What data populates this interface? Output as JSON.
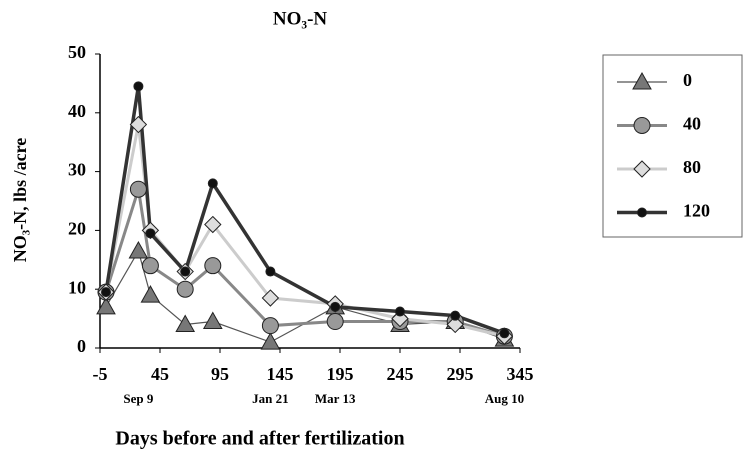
{
  "chart_data": {
    "type": "line",
    "title": "NO₃-N",
    "ylabel": "NO₃-N,  lbs /acre",
    "xlabel": "Days before and after fertilization",
    "x": [
      0,
      27,
      37,
      66,
      89,
      137,
      191,
      245,
      291,
      332
    ],
    "series": [
      {
        "name": "0",
        "color": "#555555",
        "marker_color": "#777777",
        "marker": "triangle",
        "values": [
          7,
          16.5,
          9,
          4,
          4.5,
          1,
          7,
          4,
          4.5,
          1.5
        ]
      },
      {
        "name": "40",
        "color": "#888888",
        "marker_color": "#999999",
        "marker": "circle",
        "values": [
          9.5,
          27,
          14,
          10,
          14,
          3.8,
          4.5,
          4.5,
          4.5,
          2
        ]
      },
      {
        "name": "80",
        "color": "#cccccc",
        "marker_color": "#dddddd",
        "marker": "diamond",
        "values": [
          9.5,
          38,
          20,
          13,
          21,
          8.5,
          7.5,
          5,
          4,
          2
        ]
      },
      {
        "name": "120",
        "color": "#333333",
        "marker_color": "#111111",
        "marker": "dot",
        "values": [
          9.5,
          44.5,
          19.5,
          13,
          28,
          13,
          7,
          6.2,
          5.5,
          2.5
        ]
      }
    ],
    "xlim": [
      -5,
      345
    ],
    "xticks": [
      -5,
      45,
      95,
      145,
      195,
      245,
      295,
      345
    ],
    "ylim": [
      0,
      50
    ],
    "yticks": [
      0,
      10,
      20,
      30,
      40,
      50
    ],
    "date_labels": [
      {
        "x": 27,
        "label": "Sep 9"
      },
      {
        "x": 137,
        "label": "Jan 21"
      },
      {
        "x": 191,
        "label": "Mar 13"
      },
      {
        "x": 332,
        "label": "Aug 10"
      }
    ],
    "legend": "right"
  }
}
